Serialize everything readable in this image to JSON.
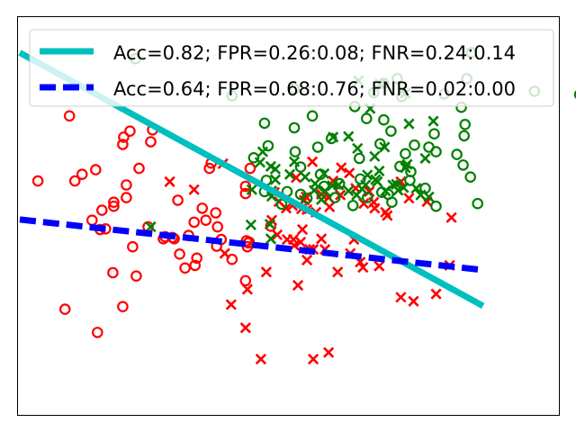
{
  "chart_data": {
    "type": "scatter",
    "title": "",
    "xlabel": "",
    "ylabel": "",
    "grid": false,
    "axis_ticks": false,
    "xlim": [
      -3.0,
      3.0
    ],
    "ylim": [
      -3.0,
      3.0
    ],
    "legend_placement": "top",
    "colors": {
      "red": "#ff0000",
      "green": "#008000",
      "line_solid": "#00bfbf",
      "line_dashed": "#0000ff",
      "frame": "#000000"
    },
    "series": [
      {
        "marker": "circle",
        "color": "#ff0000",
        "points": [
          [
            -2.77,
            0.52
          ],
          [
            -2.36,
            0.52
          ],
          [
            -2.08,
            -0.21
          ],
          [
            -2.06,
            0.08
          ],
          [
            -2.17,
            -0.07
          ],
          [
            -2.02,
            -0.2
          ],
          [
            -1.79,
            0.27
          ],
          [
            -1.72,
            -0.47
          ],
          [
            -1.82,
            1.18
          ],
          [
            -1.83,
            1.07
          ],
          [
            -1.52,
            1.11
          ],
          [
            -1.79,
            0.46
          ],
          [
            -1.5,
            1.29
          ],
          [
            -1.68,
            -0.91
          ],
          [
            -1.83,
            -1.37
          ],
          [
            -1.94,
            -0.86
          ],
          [
            -1.38,
            -0.35
          ],
          [
            -1.36,
            -0.32
          ],
          [
            -1.28,
            -0.33
          ],
          [
            -1.26,
            -0.35
          ],
          [
            -1.22,
            0.23
          ],
          [
            -1.1,
            -0.3
          ],
          [
            -1.03,
            -0.75
          ],
          [
            -1.01,
            -0.64
          ],
          [
            -1.2,
            -0.58
          ],
          [
            -1.04,
            -0.1
          ],
          [
            -0.91,
            -0.07
          ],
          [
            -0.95,
            0.11
          ],
          [
            -0.87,
            0.71
          ],
          [
            -0.85,
            0.79
          ],
          [
            -0.8,
            0.04
          ],
          [
            -0.78,
            -0.17
          ],
          [
            -0.74,
            -0.36
          ],
          [
            -2.13,
            0.69
          ],
          [
            -1.65,
            0.71
          ],
          [
            -1.75,
            1.27
          ],
          [
            -1.93,
            0.2
          ],
          [
            -2.42,
            1.5
          ],
          [
            -2.28,
            0.62
          ],
          [
            -2.47,
            -1.41
          ],
          [
            -2.11,
            -1.76
          ],
          [
            -1.93,
            0.14
          ],
          [
            -0.79,
            -0.46
          ],
          [
            -0.42,
            0.71
          ],
          [
            -0.47,
            0.44
          ],
          [
            -0.47,
            0.33
          ],
          [
            -0.44,
            -0.41
          ],
          [
            -0.43,
            -0.4
          ],
          [
            -0.46,
            -0.38
          ],
          [
            -0.45,
            -0.47
          ],
          [
            -0.62,
            -0.66
          ],
          [
            -0.47,
            -0.98
          ],
          [
            -1.14,
            -0.79
          ],
          [
            -0.19,
            -0.16
          ],
          [
            -1.55,
            -0.17
          ]
        ]
      },
      {
        "marker": "x",
        "color": "#ff0000",
        "points": [
          [
            -0.72,
            0.78
          ],
          [
            -0.15,
            0.35
          ],
          [
            -0.18,
            -0.07
          ],
          [
            -0.1,
            0.21
          ],
          [
            -0.02,
            0.11
          ],
          [
            0.05,
            0.15
          ],
          [
            0.09,
            0.57
          ],
          [
            0.15,
            0.1
          ],
          [
            0.21,
            0.09
          ],
          [
            0.2,
            0.28
          ],
          [
            0.31,
            0.05
          ],
          [
            0.37,
            0.32
          ],
          [
            0.46,
            0.13
          ],
          [
            0.18,
            0.23
          ],
          [
            -0.12,
            -0.29
          ],
          [
            0.06,
            -0.36
          ],
          [
            0.07,
            -0.45
          ],
          [
            0.16,
            -0.21
          ],
          [
            0.45,
            0.27
          ],
          [
            0.5,
            0.52
          ],
          [
            0.58,
            0.31
          ],
          [
            0.68,
            0.64
          ],
          [
            0.75,
            0.41
          ],
          [
            0.9,
            0.36
          ],
          [
            0.84,
            0.18
          ],
          [
            0.95,
            0.2
          ],
          [
            1.08,
            0.05
          ],
          [
            1.25,
            0.51
          ],
          [
            1.34,
            0.26
          ],
          [
            1.54,
            0.21
          ],
          [
            1.81,
            -0.03
          ],
          [
            1.79,
            -0.75
          ],
          [
            1.64,
            -1.18
          ],
          [
            0.83,
            -0.78
          ],
          [
            0.69,
            -0.57
          ],
          [
            0.55,
            -0.85
          ],
          [
            0.41,
            -0.51
          ],
          [
            0.28,
            -0.51
          ],
          [
            0.24,
            -0.51
          ],
          [
            0.37,
            -0.35
          ],
          [
            0.14,
            -0.4
          ],
          [
            -0.01,
            -0.36
          ],
          [
            -0.24,
            -0.85
          ],
          [
            -0.45,
            -1.11
          ],
          [
            -0.63,
            -1.34
          ],
          [
            -0.47,
            -1.69
          ],
          [
            -0.3,
            -2.16
          ],
          [
            0.28,
            -2.16
          ],
          [
            0.45,
            -2.06
          ],
          [
            0.59,
            0.72
          ],
          [
            0.27,
            0.81
          ],
          [
            0.8,
            -0.7
          ],
          [
            1.25,
            -1.23
          ],
          [
            1.39,
            -1.29
          ],
          [
            1.01,
            -0.76
          ],
          [
            0.73,
            -0.36
          ],
          [
            0.11,
            -1.05
          ],
          [
            0.21,
            -0.67
          ],
          [
            -0.7,
            -0.57
          ],
          [
            -1.04,
            0.39
          ],
          [
            -1.31,
            0.51
          ],
          [
            1.1,
            0.0
          ],
          [
            0.96,
            0.11
          ]
        ]
      },
      {
        "marker": "circle",
        "color": "#008000",
        "points": [
          [
            -1.69,
            2.36
          ],
          [
            -0.62,
            1.8
          ],
          [
            -0.38,
            0.87
          ],
          [
            -0.26,
            1.39
          ],
          [
            -0.22,
            1.05
          ],
          [
            -0.24,
            0.53
          ],
          [
            -0.07,
            0.17
          ],
          [
            -0.01,
            0.36
          ],
          [
            -0.26,
            0.36
          ],
          [
            0.07,
            1.91
          ],
          [
            0.07,
            1.32
          ],
          [
            0.08,
            0.96
          ],
          [
            0.14,
            0.73
          ],
          [
            0.14,
            0.32
          ],
          [
            0.21,
            0.26
          ],
          [
            0.33,
            1.03
          ],
          [
            0.36,
            0.62
          ],
          [
            0.4,
            0.44
          ],
          [
            0.52,
            0.27
          ],
          [
            0.57,
            0.48
          ],
          [
            0.72,
            0.15
          ],
          [
            0.8,
            0.55
          ],
          [
            1.04,
            0.35
          ],
          [
            1.11,
            0.32
          ],
          [
            1.24,
            0.74
          ],
          [
            1.14,
            1.27
          ],
          [
            1.26,
            1.79
          ],
          [
            1.21,
            2.06
          ],
          [
            1.06,
            1.99
          ],
          [
            0.95,
            1.85
          ],
          [
            0.74,
            1.64
          ],
          [
            0.87,
            1.46
          ],
          [
            1.06,
            1.44
          ],
          [
            1.02,
            1.08
          ],
          [
            1.3,
            0.93
          ],
          [
            1.62,
            1.23
          ],
          [
            1.56,
            1.03
          ],
          [
            1.64,
            0.96
          ],
          [
            1.73,
            1.83
          ],
          [
            1.92,
            1.63
          ],
          [
            1.96,
            1.37
          ],
          [
            1.95,
            1.2
          ],
          [
            1.94,
            0.76
          ],
          [
            2.02,
            0.58
          ],
          [
            2.1,
            0.18
          ],
          [
            2.73,
            1.87
          ],
          [
            3.23,
            1.82
          ],
          [
            1.4,
            1.06
          ],
          [
            1.52,
            0.41
          ],
          [
            1.64,
            0.14
          ],
          [
            1.36,
            0.66
          ],
          [
            2.03,
            2.45
          ],
          [
            1.98,
            2.06
          ],
          [
            1.87,
            0.92
          ],
          [
            0.79,
            0.86
          ],
          [
            0.48,
            1.16
          ],
          [
            0.27,
            1.5
          ],
          [
            0.88,
            0.27
          ],
          [
            1.35,
            0.53
          ],
          [
            1.15,
            0.2
          ]
        ]
      },
      {
        "marker": "x",
        "color": "#008000",
        "points": [
          [
            -1.52,
            -0.17
          ],
          [
            -0.41,
            -0.14
          ],
          [
            -0.14,
            0.54
          ],
          [
            -0.14,
            0.7
          ],
          [
            -0.19,
            0.74
          ],
          [
            -0.18,
            0.37
          ],
          [
            -0.4,
            0.39
          ],
          [
            -0.18,
            0.29
          ],
          [
            0.02,
            0.62
          ],
          [
            0.19,
            0.58
          ],
          [
            0.3,
            0.48
          ],
          [
            0.41,
            0.37
          ],
          [
            0.49,
            0.45
          ],
          [
            0.56,
            0.46
          ],
          [
            0.67,
            0.37
          ],
          [
            0.76,
            0.31
          ],
          [
            0.82,
            0.4
          ],
          [
            0.86,
            0.46
          ],
          [
            0.88,
            0.61
          ],
          [
            0.99,
            0.51
          ],
          [
            1.01,
            0.67
          ],
          [
            0.97,
            0.54
          ],
          [
            1.08,
            0.37
          ],
          [
            1.16,
            0.46
          ],
          [
            1.2,
            0.47
          ],
          [
            1.22,
            0.38
          ],
          [
            1.28,
            0.42
          ],
          [
            1.3,
            0.72
          ],
          [
            1.32,
            0.77
          ],
          [
            1.42,
            0.41
          ],
          [
            1.47,
            0.31
          ],
          [
            1.56,
            0.28
          ],
          [
            0.78,
            2.03
          ],
          [
            1.02,
            1.98
          ],
          [
            1.3,
            1.84
          ],
          [
            0.91,
            1.61
          ],
          [
            1.34,
            1.38
          ],
          [
            1.07,
            1.03
          ],
          [
            1.61,
            1.42
          ],
          [
            1.52,
            0.86
          ],
          [
            -0.2,
            -0.13
          ],
          [
            -0.19,
            -0.35
          ],
          [
            0.37,
            0.24
          ],
          [
            -0.31,
            0.8
          ],
          [
            -0.28,
            0.96
          ],
          [
            0.5,
            1.18
          ],
          [
            0.67,
            1.19
          ],
          [
            0.77,
            1.01
          ],
          [
            0.96,
            0.89
          ],
          [
            0.07,
            0.81
          ],
          [
            0.29,
            0.38
          ],
          [
            0.4,
            0.63
          ]
        ]
      }
    ],
    "lines": [
      {
        "name": "Acc=0.82; FPR=0.26:0.08; FNR=0.24:0.14",
        "style": "solid",
        "color": "#00bfbf",
        "points": [
          [
            -2.97,
            2.45
          ],
          [
            2.16,
            -1.36
          ]
        ]
      },
      {
        "name": "Acc=0.64; FPR=0.68:0.76; FNR=0.02:0.00",
        "style": "dashed",
        "color": "#0000ff",
        "points": [
          [
            -2.97,
            -0.06
          ],
          [
            2.16,
            -0.82
          ]
        ]
      }
    ]
  }
}
